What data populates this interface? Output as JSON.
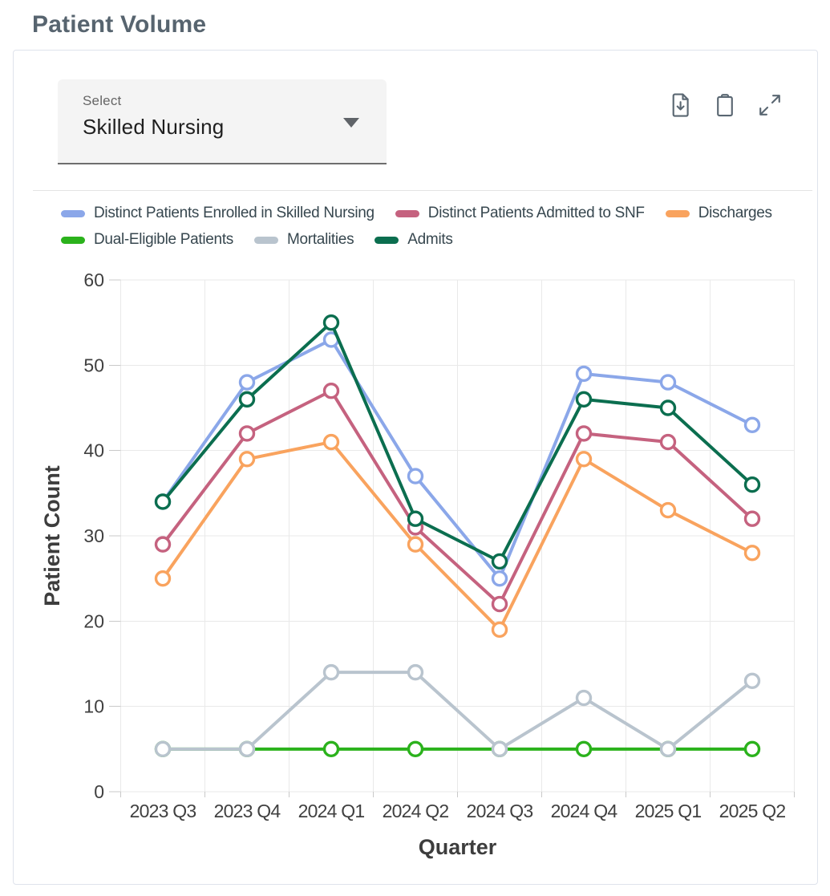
{
  "page": {
    "title": "Patient Volume"
  },
  "select": {
    "label": "Select",
    "value": "Skilled Nursing"
  },
  "toolbar": {
    "buttons": [
      {
        "icon": "download-icon"
      },
      {
        "icon": "clipboard-icon"
      },
      {
        "icon": "expand-icon"
      }
    ]
  },
  "chart_data": {
    "type": "line",
    "title": "Patient Volume",
    "xlabel": "Quarter",
    "ylabel": "Patient Count",
    "ylim": [
      0,
      60
    ],
    "yticks": [
      0,
      10,
      20,
      30,
      40,
      50,
      60
    ],
    "grid": true,
    "legend_position": "top",
    "marker": "open-circle",
    "categories": [
      "2023 Q3",
      "2023 Q4",
      "2024 Q1",
      "2024 Q2",
      "2024 Q3",
      "2024 Q4",
      "2025 Q1",
      "2025 Q2"
    ],
    "series": [
      {
        "name": "Distinct Patients Enrolled in Skilled Nursing",
        "color": "#8ba7e9",
        "values": [
          34,
          48,
          53,
          37,
          25,
          49,
          48,
          43
        ]
      },
      {
        "name": "Distinct Patients Admitted to SNF",
        "color": "#c5627f",
        "values": [
          29,
          42,
          47,
          31,
          22,
          42,
          41,
          32
        ]
      },
      {
        "name": "Discharges",
        "color": "#f9a35e",
        "values": [
          25,
          39,
          41,
          29,
          19,
          39,
          33,
          28
        ]
      },
      {
        "name": "Dual-Eligible Patients",
        "color": "#2bb21c",
        "values": [
          5,
          5,
          5,
          5,
          5,
          5,
          5,
          5
        ]
      },
      {
        "name": "Mortalities",
        "color": "#b9c4ce",
        "values": [
          5,
          5,
          14,
          14,
          5,
          11,
          5,
          13
        ]
      },
      {
        "name": "Admits",
        "color": "#0b6e4f",
        "values": [
          34,
          46,
          55,
          32,
          27,
          46,
          45,
          36
        ]
      }
    ],
    "colors": {
      "grid": "#e9e9e9",
      "tick": "#c9c9c9",
      "tick_label": "#404040",
      "axis_title": "#3d3d3d"
    }
  }
}
